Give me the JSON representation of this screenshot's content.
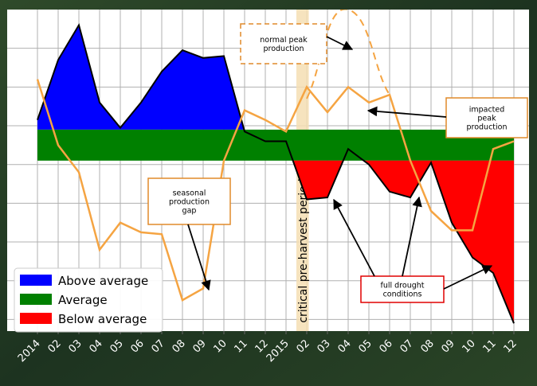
{
  "chart_data": {
    "type": "area",
    "x_tick_labels": [
      "2014",
      "02",
      "03",
      "04",
      "05",
      "06",
      "07",
      "08",
      "09",
      "10",
      "11",
      "12",
      "2015",
      "02",
      "03",
      "04",
      "05",
      "06",
      "07",
      "08",
      "09",
      "10",
      "11",
      "12"
    ],
    "average_band": [
      -4,
      4
    ],
    "ylim": [
      -48,
      35
    ],
    "index_series": {
      "values": [
        6.5,
        22,
        31,
        11,
        4.5,
        11,
        19,
        24.5,
        22.5,
        23,
        3.5,
        1,
        1,
        -14,
        -13.5,
        -1,
        -5,
        -12,
        -13.5,
        -4.5,
        -20,
        -29,
        -33,
        -46
      ],
      "fill_colors": {
        "above": "#0000ff",
        "average": "#008000",
        "below": "#ff0000"
      },
      "line_color": "#000000"
    },
    "production_series": {
      "values": [
        17,
        0,
        -7,
        -27,
        -20,
        -22.5,
        -23,
        -40,
        -37,
        -4,
        9,
        6.5,
        3.5,
        15,
        8.5,
        15,
        11,
        13,
        -4,
        -17,
        -22,
        -22,
        -1,
        1
      ],
      "color": "#f5a442"
    },
    "normal_peak_series": {
      "values": [
        12,
        35,
        13
      ],
      "start_index": 13,
      "color": "#f5a442",
      "style": "dashed"
    },
    "critical_period": {
      "from_index": 12.5,
      "to_index": 13.1,
      "label": "critical pre-harvest period",
      "color": "#f5deb3"
    },
    "legend": [
      {
        "label": "Above average",
        "color": "#0000ff"
      },
      {
        "label": "Average",
        "color": "#008000"
      },
      {
        "label": "Below average",
        "color": "#ff0000"
      }
    ],
    "legend_position": "lower-left",
    "grid": true
  },
  "annotations": {
    "normal_peak": {
      "lines": [
        "normal  peak",
        "production"
      ],
      "border_color": "#e08a2a",
      "style": "dashed"
    },
    "impacted_peak": {
      "lines": [
        "impacted",
        "peak",
        "production"
      ],
      "border_color": "#e08a2a"
    },
    "seasonal_gap": {
      "lines": [
        "seasonal",
        "production",
        "gap"
      ],
      "border_color": "#e08a2a"
    },
    "drought": {
      "lines": [
        "full drought",
        "conditions"
      ],
      "border_color": "#e00000"
    }
  }
}
